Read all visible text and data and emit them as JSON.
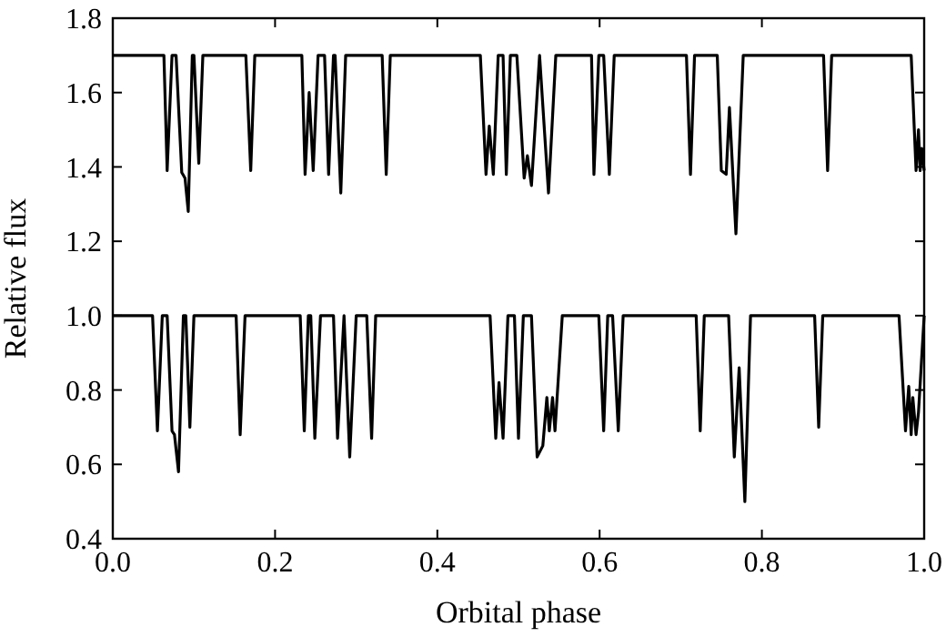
{
  "chart_data": {
    "type": "line",
    "xlabel": "Orbital phase",
    "ylabel": "Relative flux",
    "xlim": [
      0,
      1
    ],
    "ylim": [
      0.4,
      1.8
    ],
    "xticks": [
      {
        "value": 0,
        "label": "0.0"
      },
      {
        "value": 0.2,
        "label": "0.2"
      },
      {
        "value": 0.4,
        "label": "0.4"
      },
      {
        "value": 0.6,
        "label": "0.6"
      },
      {
        "value": 0.8,
        "label": "0.8"
      },
      {
        "value": 1,
        "label": "1.0"
      }
    ],
    "yticks": [
      {
        "value": 0.4,
        "label": "0.4"
      },
      {
        "value": 0.6,
        "label": "0.6"
      },
      {
        "value": 0.8,
        "label": "0.8"
      },
      {
        "value": 1,
        "label": "1.0"
      },
      {
        "value": 1.2,
        "label": "1.2"
      },
      {
        "value": 1.4,
        "label": "1.4"
      },
      {
        "value": 1.6,
        "label": "1.6"
      },
      {
        "value": 1.8,
        "label": "1.8"
      }
    ],
    "series": [
      {
        "color": "#000000",
        "x": [
          0,
          0.063,
          0.067,
          0.073,
          0.078,
          0.085,
          0.089,
          0.093,
          0.098,
          0.1,
          0.106,
          0.111,
          0.164,
          0.17,
          0.175,
          0.233,
          0.237,
          0.242,
          0.247,
          0.253,
          0.261,
          0.266,
          0.272,
          0.274,
          0.281,
          0.287,
          0.332,
          0.337,
          0.342,
          0.453,
          0.46,
          0.464,
          0.469,
          0.475,
          0.481,
          0.485,
          0.49,
          0.498,
          0.507,
          0.511,
          0.516,
          0.526,
          0.537,
          0.546,
          0.59,
          0.593,
          0.599,
          0.605,
          0.612,
          0.618,
          0.707,
          0.712,
          0.717,
          0.745,
          0.75,
          0.756,
          0.76,
          0.768,
          0.777,
          0.876,
          0.881,
          0.886,
          0.984,
          0.99,
          0.993,
          0.995,
          0.997,
          1
        ],
        "values": [
          1.7,
          1.7,
          1.39,
          1.7,
          1.7,
          1.385,
          1.37,
          1.28,
          1.7,
          1.7,
          1.41,
          1.7,
          1.7,
          1.39,
          1.7,
          1.7,
          1.38,
          1.6,
          1.39,
          1.7,
          1.7,
          1.38,
          1.7,
          1.7,
          1.33,
          1.7,
          1.7,
          1.38,
          1.7,
          1.7,
          1.38,
          1.51,
          1.38,
          1.7,
          1.7,
          1.38,
          1.7,
          1.7,
          1.37,
          1.43,
          1.35,
          1.7,
          1.33,
          1.7,
          1.7,
          1.38,
          1.7,
          1.7,
          1.38,
          1.7,
          1.7,
          1.38,
          1.7,
          1.7,
          1.39,
          1.38,
          1.56,
          1.22,
          1.7,
          1.7,
          1.39,
          1.7,
          1.7,
          1.39,
          1.5,
          1.39,
          1.45,
          1.39
        ]
      },
      {
        "color": "#000000",
        "x": [
          0,
          0.049,
          0.055,
          0.061,
          0.067,
          0.073,
          0.076,
          0.081,
          0.087,
          0.09,
          0.095,
          0.1,
          0.152,
          0.157,
          0.163,
          0.231,
          0.236,
          0.241,
          0.244,
          0.249,
          0.256,
          0.272,
          0.277,
          0.285,
          0.292,
          0.3,
          0.313,
          0.319,
          0.324,
          0.465,
          0.472,
          0.476,
          0.481,
          0.487,
          0.495,
          0.5,
          0.506,
          0.516,
          0.523,
          0.53,
          0.535,
          0.538,
          0.542,
          0.545,
          0.554,
          0.599,
          0.605,
          0.61,
          0.616,
          0.623,
          0.629,
          0.719,
          0.724,
          0.729,
          0.759,
          0.766,
          0.772,
          0.779,
          0.786,
          0.865,
          0.87,
          0.875,
          0.969,
          0.977,
          0.981,
          0.984,
          0.986,
          0.99,
          0.993,
          1
        ],
        "values": [
          1,
          1,
          0.69,
          1,
          1,
          0.69,
          0.68,
          0.58,
          1,
          1,
          0.7,
          1,
          1,
          0.68,
          1,
          1,
          0.69,
          1,
          1,
          0.67,
          1,
          1,
          0.67,
          1,
          0.62,
          1,
          1,
          0.67,
          1,
          1,
          0.67,
          0.82,
          0.67,
          1,
          1,
          0.67,
          1,
          1,
          0.62,
          0.65,
          0.78,
          0.69,
          0.78,
          0.69,
          1,
          1,
          0.69,
          1,
          1,
          0.69,
          1,
          1,
          0.69,
          1,
          1,
          0.62,
          0.86,
          0.5,
          1,
          1,
          0.7,
          1,
          1,
          0.69,
          0.81,
          0.68,
          0.78,
          0.68,
          0.74,
          1
        ]
      }
    ]
  }
}
